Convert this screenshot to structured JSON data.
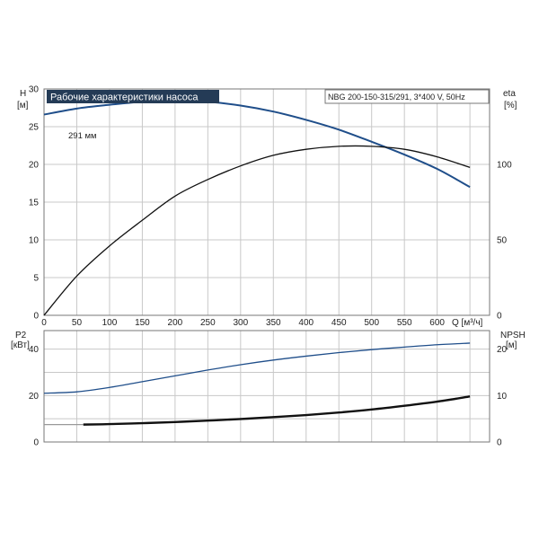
{
  "chart_data": [
    {
      "type": "line",
      "title": "Рабочие характеристики насоса",
      "model_label": "NBG 200-150-315/291, 3*400 V, 50Hz",
      "left_axis": {
        "label_line1": "H",
        "label_line2": "[м]",
        "ticks": [
          "0",
          "5",
          "10",
          "15",
          "20",
          "25",
          "30"
        ],
        "range": [
          0,
          30
        ]
      },
      "right_axis": {
        "label_line1": "eta",
        "label_line2": "[%]",
        "ticks": [
          "0",
          "50",
          "100"
        ],
        "range": [
          0,
          150
        ]
      },
      "x_axis": {
        "label": "Q [м³/ч]",
        "ticks": [
          "0",
          "50",
          "100",
          "150",
          "200",
          "250",
          "300",
          "350",
          "400",
          "450",
          "500",
          "550",
          "600"
        ],
        "range": [
          0,
          680
        ]
      },
      "grid": true,
      "curve_label": "291 мм",
      "series": [
        {
          "name": "",
          "axis": "left",
          "color": "#1f4e8a",
          "x": [
            0,
            50,
            100,
            150,
            200,
            250,
            300,
            350,
            400,
            450,
            500,
            550,
            600,
            650
          ],
          "y": [
            26.6,
            27.4,
            27.9,
            28.3,
            28.5,
            28.3,
            27.8,
            27.0,
            25.9,
            24.6,
            23.0,
            21.3,
            19.4,
            17.0
          ]
        },
        {
          "name": "",
          "axis": "right",
          "color": "#111111",
          "x": [
            0,
            50,
            100,
            150,
            200,
            250,
            300,
            350,
            400,
            450,
            500,
            550,
            600,
            650
          ],
          "y": [
            0,
            26,
            46,
            63,
            79,
            90,
            99,
            106,
            110,
            112,
            112,
            110,
            105,
            98
          ]
        }
      ]
    },
    {
      "type": "line",
      "left_axis": {
        "label_line1": "P2",
        "label_line2": "[кВт]",
        "ticks": [
          "0",
          "20",
          "40"
        ],
        "range": [
          0,
          48
        ]
      },
      "right_axis": {
        "label_line1": "NPSH",
        "label_line2": "[м]",
        "ticks": [
          "0",
          "10",
          "20"
        ],
        "range": [
          0,
          24
        ]
      },
      "x_axis": {
        "range": [
          0,
          680
        ]
      },
      "grid": true,
      "series": [
        {
          "name": "",
          "axis": "left",
          "color": "#1f4e8a",
          "x": [
            0,
            50,
            100,
            150,
            200,
            250,
            300,
            350,
            400,
            450,
            500,
            550,
            600,
            650
          ],
          "y": [
            21.0,
            21.6,
            23.5,
            26.0,
            28.5,
            31.0,
            33.3,
            35.3,
            37.0,
            38.5,
            39.8,
            40.9,
            41.9,
            42.6
          ]
        },
        {
          "name": "",
          "axis": "left",
          "color": "#999999",
          "x": [
            0,
            60
          ],
          "y": [
            7.5,
            7.5
          ]
        },
        {
          "name": "",
          "axis": "right",
          "color": "#111111",
          "x": [
            60,
            100,
            150,
            200,
            250,
            300,
            350,
            400,
            450,
            500,
            550,
            600,
            650
          ],
          "y": [
            3.75,
            3.85,
            4.05,
            4.3,
            4.6,
            4.95,
            5.35,
            5.8,
            6.35,
            7.0,
            7.8,
            8.7,
            9.8
          ]
        }
      ]
    }
  ]
}
